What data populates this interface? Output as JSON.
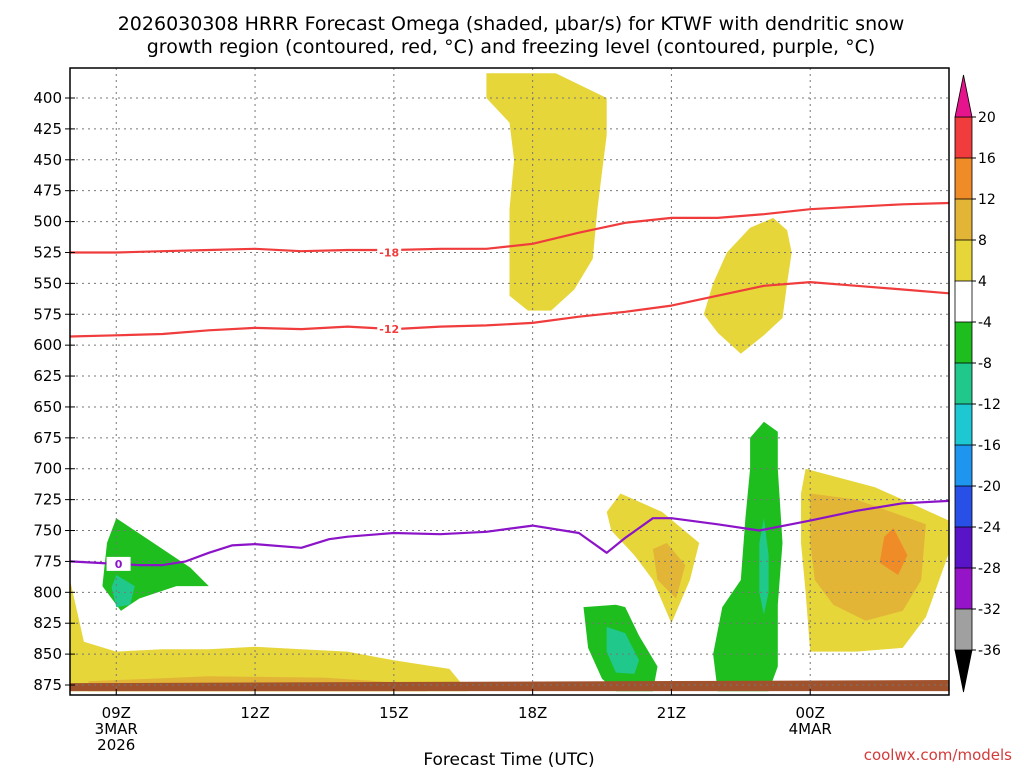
{
  "chart_data": {
    "type": "time-height cross section (filled contour)",
    "title_line1": "2026030308 HRRR Forecast Omega (shaded, μbar/s) for KTWF with dendritic snow",
    "title_line2": "growth region (contoured, red, °C) and freezing level (contoured, purple, °C)",
    "xlabel": "Forecast Time (UTC)",
    "credit": "coolwx.com/models",
    "xlim": [
      8,
      27
    ],
    "ylim_hpa": [
      880,
      380
    ],
    "y_ticks": [
      400,
      425,
      450,
      475,
      500,
      525,
      550,
      575,
      600,
      625,
      650,
      675,
      700,
      725,
      750,
      775,
      800,
      825,
      850,
      875
    ],
    "x_ticks": [
      {
        "t": 9,
        "lines": [
          "09Z",
          "3MAR",
          "2026"
        ]
      },
      {
        "t": 12,
        "lines": [
          "12Z"
        ]
      },
      {
        "t": 15,
        "lines": [
          "15Z"
        ]
      },
      {
        "t": 18,
        "lines": [
          "18Z"
        ]
      },
      {
        "t": 21,
        "lines": [
          "21Z"
        ]
      },
      {
        "t": 24,
        "lines": [
          "00Z",
          "4MAR"
        ]
      }
    ],
    "colorbar": {
      "labels": [
        "20",
        "16",
        "12",
        "8",
        "4",
        "-4",
        "-8",
        "-12",
        "-16",
        "-20",
        "-24",
        "-28",
        "-32",
        "-36"
      ],
      "colors": [
        "#f03c3c",
        "#f08c28",
        "#e3b537",
        "#e6d63a",
        "#ffffff",
        "#1ebe1e",
        "#20c88c",
        "#1ec8d2",
        "#1e96f0",
        "#2850e6",
        "#5a14c8",
        "#9614c8",
        "#a0a0a0"
      ],
      "top_arrow_color": "#e6148c",
      "bottom_arrow_color": "#000000"
    },
    "ground_color": "#a0522d",
    "contour_series": [
      {
        "name": "-18",
        "label": "-18",
        "color": "#f03c3c",
        "label_at": {
          "t": 14.9,
          "p": 525
        },
        "points": [
          [
            8,
            525
          ],
          [
            9,
            525
          ],
          [
            10,
            524
          ],
          [
            11,
            523
          ],
          [
            12,
            522
          ],
          [
            13,
            524
          ],
          [
            14,
            523
          ],
          [
            15,
            523
          ],
          [
            16,
            522
          ],
          [
            17,
            522
          ],
          [
            18,
            518
          ],
          [
            19,
            509
          ],
          [
            20,
            501
          ],
          [
            21,
            497
          ],
          [
            22,
            497
          ],
          [
            23,
            494
          ],
          [
            24,
            490
          ],
          [
            25,
            488
          ],
          [
            26,
            486
          ],
          [
            27,
            485
          ]
        ]
      },
      {
        "name": "-12",
        "label": "-12",
        "color": "#f03c3c",
        "label_at": {
          "t": 14.9,
          "p": 587
        },
        "points": [
          [
            8,
            593
          ],
          [
            9,
            592
          ],
          [
            10,
            591
          ],
          [
            11,
            588
          ],
          [
            12,
            586
          ],
          [
            13,
            587
          ],
          [
            14,
            585
          ],
          [
            15,
            587
          ],
          [
            16,
            585
          ],
          [
            17,
            584
          ],
          [
            18,
            582
          ],
          [
            19,
            577
          ],
          [
            20,
            573
          ],
          [
            21,
            568
          ],
          [
            22,
            560
          ],
          [
            23,
            552
          ],
          [
            24,
            549
          ],
          [
            25,
            552
          ],
          [
            26,
            555
          ],
          [
            27,
            558
          ]
        ]
      },
      {
        "name": "0",
        "label": "0",
        "color": "#8c14c8",
        "label_at": {
          "t": 9.05,
          "p": 777
        },
        "points": [
          [
            8,
            775
          ],
          [
            9,
            777
          ],
          [
            9.5,
            778
          ],
          [
            10,
            778
          ],
          [
            10.5,
            775
          ],
          [
            11,
            768
          ],
          [
            11.5,
            762
          ],
          [
            12,
            761
          ],
          [
            13,
            764
          ],
          [
            13.6,
            757
          ],
          [
            14,
            755
          ],
          [
            15,
            752
          ],
          [
            16,
            753
          ],
          [
            17,
            751
          ],
          [
            18,
            746
          ],
          [
            19,
            752
          ],
          [
            19.6,
            768
          ],
          [
            20,
            756
          ],
          [
            20.6,
            740
          ],
          [
            21,
            740
          ],
          [
            22,
            745
          ],
          [
            22.9,
            750
          ],
          [
            24,
            742
          ],
          [
            25,
            734
          ],
          [
            26,
            728
          ],
          [
            27,
            726
          ]
        ]
      }
    ],
    "omega_regions": [
      {
        "name": "upper yellow plume",
        "omega": "4 to 8",
        "color": "#e6d63a",
        "points": [
          [
            17,
            380
          ],
          [
            18.5,
            380
          ],
          [
            19.6,
            400
          ],
          [
            19.6,
            430
          ],
          [
            19.5,
            460
          ],
          [
            19.4,
            490
          ],
          [
            19.3,
            530
          ],
          [
            18.9,
            555
          ],
          [
            18.4,
            572
          ],
          [
            17.9,
            572
          ],
          [
            17.5,
            560
          ],
          [
            17.5,
            490
          ],
          [
            17.6,
            450
          ],
          [
            17.5,
            420
          ],
          [
            17,
            400
          ]
        ]
      },
      {
        "name": "mid yellow blob",
        "omega": "4 to 8",
        "color": "#e6d63a",
        "points": [
          [
            23.2,
            497
          ],
          [
            23.5,
            507
          ],
          [
            23.6,
            525
          ],
          [
            23.5,
            550
          ],
          [
            23.4,
            578
          ],
          [
            23,
            592
          ],
          [
            22.5,
            607
          ],
          [
            22,
            590
          ],
          [
            21.7,
            575
          ],
          [
            21.9,
            550
          ],
          [
            22.2,
            525
          ],
          [
            22.7,
            505
          ],
          [
            23.2,
            497
          ]
        ]
      },
      {
        "name": "yellow 21Z",
        "omega": "4 to 8",
        "color": "#e6d63a",
        "points": [
          [
            19.9,
            720
          ],
          [
            20.8,
            735
          ],
          [
            21.6,
            760
          ],
          [
            21.4,
            790
          ],
          [
            21.0,
            825
          ],
          [
            20.6,
            790
          ],
          [
            20.2,
            770
          ],
          [
            19.7,
            750
          ],
          [
            19.6,
            735
          ],
          [
            19.9,
            720
          ]
        ]
      },
      {
        "name": "orange 21Z",
        "omega": "8 to 12",
        "color": "#e3b537",
        "points": [
          [
            20.9,
            760
          ],
          [
            21.3,
            778
          ],
          [
            21.1,
            805
          ],
          [
            20.7,
            790
          ],
          [
            20.6,
            765
          ],
          [
            20.9,
            760
          ]
        ]
      },
      {
        "name": "right yellow",
        "omega": "4 to 8",
        "color": "#e6d63a",
        "points": [
          [
            23.9,
            700
          ],
          [
            24.7,
            708
          ],
          [
            25.4,
            715
          ],
          [
            26,
            725
          ],
          [
            27,
            742
          ],
          [
            27,
            768
          ],
          [
            26.5,
            820
          ],
          [
            26,
            845
          ],
          [
            25,
            848
          ],
          [
            24,
            848
          ],
          [
            23.9,
            800
          ],
          [
            23.8,
            760
          ],
          [
            23.8,
            720
          ],
          [
            23.9,
            700
          ]
        ]
      },
      {
        "name": "right orange",
        "omega": "8 to 12",
        "color": "#e3b537",
        "points": [
          [
            24,
            720
          ],
          [
            25,
            725
          ],
          [
            26.5,
            745
          ],
          [
            26.4,
            790
          ],
          [
            26,
            815
          ],
          [
            25.2,
            823
          ],
          [
            24.5,
            810
          ],
          [
            24.1,
            790
          ],
          [
            24,
            760
          ],
          [
            24,
            720
          ]
        ]
      },
      {
        "name": "right dark orange",
        "omega": "12 to 16",
        "color": "#f08c28",
        "points": [
          [
            25.8,
            748
          ],
          [
            26.1,
            770
          ],
          [
            25.9,
            786
          ],
          [
            25.5,
            776
          ],
          [
            25.6,
            755
          ],
          [
            25.8,
            748
          ]
        ]
      },
      {
        "name": "left yellow base",
        "omega": "4 to 8",
        "color": "#e6d63a",
        "points": [
          [
            8,
            790
          ],
          [
            8.3,
            840
          ],
          [
            9,
            848
          ],
          [
            10,
            846
          ],
          [
            11,
            846
          ],
          [
            12,
            844
          ],
          [
            13,
            846
          ],
          [
            14,
            848
          ],
          [
            15,
            855
          ],
          [
            16.2,
            862
          ],
          [
            16.6,
            880
          ],
          [
            8,
            880
          ],
          [
            8,
            790
          ]
        ]
      },
      {
        "name": "left orange base",
        "omega": "8 to 12",
        "color": "#e3b537",
        "points": [
          [
            8.4,
            872
          ],
          [
            11,
            868
          ],
          [
            13.5,
            869
          ],
          [
            15.5,
            874
          ],
          [
            15.7,
            880
          ],
          [
            8.4,
            880
          ]
        ]
      },
      {
        "name": "green 09Z",
        "omega": "-4 to -8",
        "color": "#1ebe1e",
        "points": [
          [
            9,
            740
          ],
          [
            9.8,
            760
          ],
          [
            10.6,
            780
          ],
          [
            11,
            795
          ],
          [
            10.3,
            795
          ],
          [
            9.5,
            805
          ],
          [
            9.1,
            815
          ],
          [
            8.7,
            795
          ],
          [
            8.8,
            760
          ],
          [
            9,
            740
          ]
        ]
      },
      {
        "name": "teal 09Z",
        "omega": "-8 to -12",
        "color": "#20c88c",
        "points": [
          [
            9,
            786
          ],
          [
            9.4,
            795
          ],
          [
            9.3,
            810
          ],
          [
            9.0,
            812
          ],
          [
            8.9,
            796
          ],
          [
            9,
            786
          ]
        ]
      },
      {
        "name": "green 20Z",
        "omega": "-4 to -8",
        "color": "#1ebe1e",
        "points": [
          [
            19.1,
            812
          ],
          [
            19.8,
            810
          ],
          [
            20,
            812
          ],
          [
            20.3,
            835
          ],
          [
            20.7,
            860
          ],
          [
            20.6,
            880
          ],
          [
            19.8,
            880
          ],
          [
            19.5,
            870
          ],
          [
            19.2,
            845
          ],
          [
            19.1,
            812
          ]
        ]
      },
      {
        "name": "teal 20Z",
        "omega": "-8 to -12",
        "color": "#20c88c",
        "points": [
          [
            19.6,
            828
          ],
          [
            20,
            833
          ],
          [
            20.3,
            855
          ],
          [
            20.2,
            866
          ],
          [
            19.8,
            865
          ],
          [
            19.6,
            848
          ],
          [
            19.6,
            828
          ]
        ]
      },
      {
        "name": "green 23Z column",
        "omega": "-4 to -8",
        "color": "#1ebe1e",
        "points": [
          [
            23,
            662
          ],
          [
            23.3,
            670
          ],
          [
            23.3,
            700
          ],
          [
            23.4,
            760
          ],
          [
            23.3,
            810
          ],
          [
            23.3,
            860
          ],
          [
            23.1,
            880
          ],
          [
            22.0,
            880
          ],
          [
            21.9,
            850
          ],
          [
            22.1,
            812
          ],
          [
            22.5,
            790
          ],
          [
            22.6,
            740
          ],
          [
            22.7,
            700
          ],
          [
            22.7,
            675
          ],
          [
            23,
            662
          ]
        ]
      },
      {
        "name": "teal 23Z",
        "omega": "-8 to -12",
        "color": "#20c88c",
        "points": [
          [
            23.0,
            740
          ],
          [
            23.1,
            770
          ],
          [
            23.1,
            800
          ],
          [
            23.0,
            818
          ],
          [
            22.9,
            800
          ],
          [
            22.9,
            760
          ],
          [
            23.0,
            740
          ]
        ]
      }
    ]
  }
}
